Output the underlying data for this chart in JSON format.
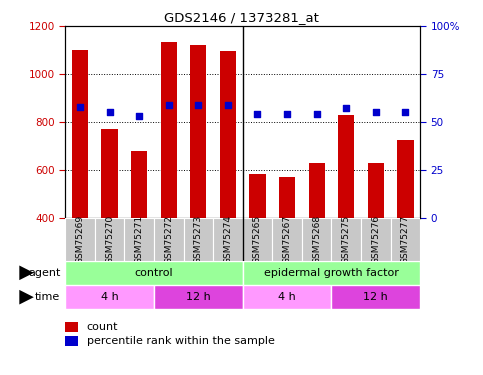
{
  "title": "GDS2146 / 1373281_at",
  "samples": [
    "GSM75269",
    "GSM75270",
    "GSM75271",
    "GSM75272",
    "GSM75273",
    "GSM75274",
    "GSM75265",
    "GSM75267",
    "GSM75268",
    "GSM75275",
    "GSM75276",
    "GSM75277"
  ],
  "counts": [
    1100,
    770,
    680,
    1135,
    1120,
    1095,
    580,
    570,
    630,
    830,
    630,
    725
  ],
  "percentiles": [
    58,
    55,
    53,
    59,
    59,
    59,
    54,
    54,
    54,
    57,
    55,
    55
  ],
  "ylim_left": [
    400,
    1200
  ],
  "ylim_right": [
    0,
    100
  ],
  "yticks_left": [
    400,
    600,
    800,
    1000,
    1200
  ],
  "yticks_right": [
    0,
    25,
    50,
    75,
    100
  ],
  "bar_color": "#cc0000",
  "dot_color": "#0000cc",
  "bar_bottom": 400,
  "agent_label_control": "control",
  "agent_label_egf": "epidermal growth factor",
  "time_label_4h": "4 h",
  "time_label_12h": "12 h",
  "agent_color": "#99ff99",
  "time_color_4h": "#ff99ff",
  "time_color_12h": "#dd44dd",
  "xtick_bg": "#c8c8c8",
  "plot_bg": "#ffffff",
  "left_tick_color": "#cc0000",
  "right_tick_color": "#0000cc",
  "separator_col": 5.5,
  "n_control": 6,
  "n_egf": 6,
  "time_splits": [
    3,
    6,
    9
  ]
}
